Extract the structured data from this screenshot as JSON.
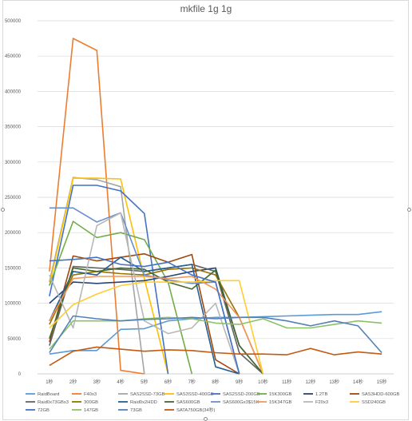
{
  "chart_data": {
    "type": "line",
    "title": "mkfile 1g 1g",
    "xlabel": "",
    "ylabel": "",
    "ylim": [
      0,
      500000
    ],
    "ytick_step": 50000,
    "yticks": [
      "0",
      "50000",
      "100000",
      "150000",
      "200000",
      "250000",
      "300000",
      "350000",
      "400000",
      "450000",
      "500000"
    ],
    "categories": [
      "1秒",
      "2秒",
      "3秒",
      "4秒",
      "5秒",
      "6秒",
      "7秒",
      "8秒",
      "9秒",
      "10秒",
      "11秒",
      "12秒",
      "13秒",
      "14秒",
      "15秒"
    ],
    "grid": true,
    "legend_position": "bottom",
    "series": [
      {
        "name": "RaidBoard",
        "color": "#5b9bd5",
        "values": [
          28000,
          33000,
          33000,
          63000,
          64000,
          75000,
          78000,
          80000,
          80000,
          81000,
          82000,
          83000,
          84000,
          84000,
          88000
        ]
      },
      {
        "name": "F40x3",
        "color": "#ed7d31",
        "values": [
          145000,
          475000,
          458000,
          5000,
          0,
          null,
          null,
          null,
          null,
          null,
          null,
          null,
          null,
          null,
          null
        ]
      },
      {
        "name": "SAS2SSD-73GB",
        "color": "#a5a5a5",
        "values": [
          130000,
          278000,
          275000,
          265000,
          0,
          null,
          null,
          null,
          null,
          null,
          null,
          null,
          null,
          null,
          null
        ]
      },
      {
        "name": "SAS3SSD-400GB",
        "color": "#ffc000",
        "values": [
          125000,
          277000,
          277000,
          276000,
          135000,
          0,
          null,
          null,
          null,
          null,
          null,
          null,
          null,
          null,
          null
        ]
      },
      {
        "name": "SAS2SSD-200GB",
        "color": "#4472c4",
        "values": [
          110000,
          267000,
          267000,
          259000,
          227000,
          0,
          null,
          null,
          null,
          null,
          null,
          null,
          null,
          null,
          null
        ]
      },
      {
        "name": "15K300GB",
        "color": "#70ad47",
        "values": [
          125000,
          216000,
          193000,
          200000,
          190000,
          130000,
          0,
          null,
          null,
          null,
          null,
          null,
          null,
          null,
          null
        ]
      },
      {
        "name": "1.2TB",
        "color": "#264478",
        "values": [
          100000,
          130000,
          128000,
          130000,
          132000,
          138000,
          145000,
          150000,
          40000,
          0,
          null,
          null,
          null,
          null,
          null
        ]
      },
      {
        "name": "SAS3HDD-600GB",
        "color": "#9e480e",
        "values": [
          45000,
          167000,
          160000,
          165000,
          170000,
          158000,
          169000,
          20000,
          0,
          null,
          null,
          null,
          null,
          null,
          null
        ]
      },
      {
        "name": "Raid0x73GBx3",
        "color": "#636363",
        "values": [
          40000,
          152000,
          150000,
          148000,
          145000,
          150000,
          155000,
          145000,
          30000,
          0,
          null,
          null,
          null,
          null,
          null
        ]
      },
      {
        "name": "300GB",
        "color": "#997300",
        "values": [
          70000,
          140000,
          145000,
          142000,
          140000,
          148000,
          150000,
          140000,
          80000,
          0,
          null,
          null,
          null,
          null,
          null
        ]
      },
      {
        "name": "Raid0x2HDD",
        "color": "#255e91",
        "values": [
          75000,
          145000,
          140000,
          165000,
          145000,
          150000,
          155000,
          10000,
          0,
          null,
          null,
          null,
          null,
          null,
          null
        ]
      },
      {
        "name": "SAS600GB",
        "color": "#43682b",
        "values": [
          50000,
          150000,
          145000,
          150000,
          148000,
          130000,
          120000,
          147000,
          40000,
          0,
          null,
          null,
          null,
          null,
          null
        ]
      },
      {
        "name": "SAS600Gx3$15K",
        "color": "#698ed0",
        "values": [
          235000,
          235000,
          215000,
          228000,
          140000,
          133000,
          128000,
          130000,
          0,
          null,
          null,
          null,
          null,
          null,
          null
        ]
      },
      {
        "name": "15K347GB",
        "color": "#f1975a",
        "values": [
          75000,
          135000,
          138000,
          138000,
          138000,
          135000,
          138000,
          120000,
          80000,
          0,
          null,
          null,
          null,
          null,
          null
        ]
      },
      {
        "name": "F20x3",
        "color": "#b7b7b7",
        "values": [
          140000,
          65000,
          210000,
          228000,
          75000,
          57000,
          65000,
          100000,
          0,
          null,
          null,
          null,
          null,
          null,
          null
        ]
      },
      {
        "name": "SSD240GB",
        "color": "#ffcd33",
        "values": [
          65000,
          98000,
          113000,
          125000,
          130000,
          130000,
          130000,
          132000,
          132000,
          0,
          null,
          null,
          null,
          null,
          null
        ]
      },
      {
        "name": "72GB",
        "color": "#4472c4",
        "values": [
          160000,
          162000,
          165000,
          155000,
          152000,
          158000,
          140000,
          130000,
          0,
          null,
          null,
          null,
          null,
          null,
          null
        ]
      },
      {
        "name": "147GB",
        "color": "#8cc168",
        "values": [
          35000,
          75000,
          75000,
          75000,
          78000,
          80000,
          78000,
          72000,
          70000,
          78000,
          65000,
          65000,
          70000,
          75000,
          72000
        ]
      },
      {
        "name": "73GB",
        "color": "#5380b8",
        "values": [
          30000,
          82000,
          78000,
          75000,
          77000,
          78000,
          80000,
          78000,
          80000,
          80000,
          75000,
          68000,
          75000,
          68000,
          30000
        ]
      },
      {
        "name": "SATA750GB(34秒)",
        "color": "#c55a11",
        "values": [
          12000,
          32000,
          38000,
          35000,
          32000,
          34000,
          33000,
          30000,
          28000,
          28000,
          27000,
          36000,
          27000,
          31000,
          28000
        ]
      }
    ]
  }
}
